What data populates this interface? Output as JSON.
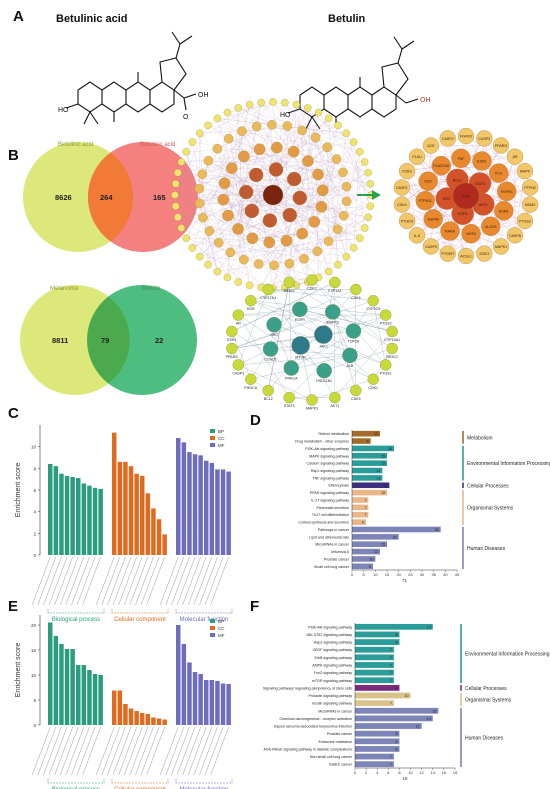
{
  "panels": {
    "A": "A",
    "B": "B",
    "C": "C",
    "D": "D",
    "E": "E",
    "F": "F"
  },
  "molecules": {
    "left": {
      "name": "Betulinic acid",
      "label_oh": "OH",
      "label_ho": "HO",
      "label_o": "O"
    },
    "right": {
      "name": "Betulin",
      "label_oh": "OH",
      "label_ho": "HO"
    }
  },
  "venn1": {
    "left_label": "Betulinic acid",
    "right_label": "Betulinic acid",
    "left_only": "8626",
    "both": "264",
    "right_only": "165",
    "left_color": "#d8e56a",
    "right_color": "#f07070"
  },
  "venn2": {
    "left_label": "Melanoma",
    "right_label": "Betulin",
    "left_only": "8811",
    "both": "79",
    "right_only": "22",
    "left_color": "#d8e56a",
    "right_color": "#2fb36a"
  },
  "net_right_labels": [
    "FGFR3",
    "CASP3",
    "PPARG",
    "AR",
    "MAPK",
    "PTPN2",
    "MDM2",
    "PTGS2",
    "CASP8",
    "MAPK1",
    "SOD1",
    "ACSL1",
    "PTGER",
    "CASP9",
    "IL-6",
    "PTGDS",
    "CDK4",
    "CASP1",
    "F2DS",
    "PLAU",
    "ACE",
    "CASP2",
    "ESR1",
    "PLG",
    "FGFR4",
    "KDM1",
    "ALOX5",
    "NOS2",
    "RARA",
    "HSP90",
    "PTPN11",
    "SCD",
    "PLA2G4A",
    "TNF",
    "STAT3",
    "AKT1",
    "EGFR",
    "SRC",
    "BCL2",
    "JUN"
  ],
  "net_bottom_labels": [
    "CDK2",
    "CYP1A1",
    "CDK6",
    "CYP2C9",
    "PTGS2",
    "CYP19A1",
    "NR3C1",
    "PTGS1",
    "CDK1",
    "CDK4",
    "AKT1",
    "MAPK1",
    "STAT3",
    "BCL2",
    "PIK3CA",
    "CASP3",
    "PPARG",
    "ESR1",
    "AR",
    "KDR",
    "CYP17A1",
    "MDM2",
    "MAPK3",
    "TOP2A",
    "ALB",
    "HSD11B1",
    "PRKCA",
    "CCND1",
    "SRC",
    "EGFR",
    "JAK2",
    "MTOR"
  ],
  "chart_data": [
    {
      "type": "bar",
      "panel": "C",
      "ylabel": "Enrichment score",
      "yticks": [
        "10",
        "8",
        "6",
        "4",
        "2",
        "0"
      ],
      "ylim": [
        0,
        12
      ],
      "groups": [
        "Biological process",
        "Cellular component",
        "Molecular function"
      ],
      "legend": [
        "BP",
        "CC",
        "MF"
      ],
      "colors": [
        "#2a9d7f",
        "#e06a1e",
        "#6d6cbf"
      ],
      "series": [
        {
          "name": "BP",
          "values": [
            8.4,
            8.2,
            7.5,
            7.3,
            7.2,
            7.1,
            6.6,
            6.4,
            6.2,
            6.1
          ]
        },
        {
          "name": "CC",
          "values": [
            11.3,
            8.6,
            8.6,
            8.2,
            7.5,
            7.3,
            5.7,
            4.3,
            3.3,
            1.9
          ]
        },
        {
          "name": "MF",
          "values": [
            10.8,
            10.4,
            9.5,
            9.3,
            9.2,
            8.7,
            8.5,
            7.9,
            7.9,
            7.7
          ]
        }
      ]
    },
    {
      "type": "bar",
      "panel": "D",
      "xlabel": "71",
      "xticks": [
        "0",
        "5",
        "10",
        "15",
        "20",
        "25",
        "30",
        "35",
        "40",
        "45"
      ],
      "xlim": [
        0,
        45
      ],
      "categories": [
        "Retinol metabolism",
        "Drug metabolism - other enzymes",
        "PI3K-Akt signaling pathway",
        "MAPK signaling pathway",
        "Calcium signaling pathway",
        "Rap1 signaling pathway",
        "TNF signaling pathway",
        "Efferocytosis",
        "PPAR signaling pathway",
        "IL-17 signaling pathway",
        "Pancreatic secretion",
        "Th17 cell differentiation",
        "Cortisol synthesis and secretion",
        "Pathways in cancer",
        "Lipid and atherosclerosis",
        "MicroRNAs in cancer",
        "Influenza A",
        "Prostate cancer",
        "Small cell lung cancer"
      ],
      "values": [
        12,
        8,
        18,
        15,
        15,
        13,
        13,
        16,
        15,
        7,
        7,
        7,
        6,
        38,
        20,
        15,
        12,
        10,
        9
      ],
      "classes": [
        "Metabolism",
        "Metabolism",
        "Environmental Information Processing",
        "Environmental Information Processing",
        "Environmental Information Processing",
        "Environmental Information Processing",
        "Environmental Information Processing",
        "Cellular Processes",
        "Organismal Systems",
        "Organismal Systems",
        "Organismal Systems",
        "Organismal Systems",
        "Organismal Systems",
        "Human Diseases",
        "Human Diseases",
        "Human Diseases",
        "Human Diseases",
        "Human Diseases",
        "Human Diseases"
      ],
      "class_labels": [
        "Metabolism",
        "Environmental Information Processing",
        "Cellular Processes",
        "Organismal Systems",
        "Human Diseases"
      ],
      "class_colors": {
        "Metabolism": "#a36a2a",
        "Environmental Information Processing": "#2a9d9a",
        "Cellular Processes": "#3d2f7f",
        "Organismal Systems": "#e9b787",
        "Human Diseases": "#7d84b8"
      }
    },
    {
      "type": "bar",
      "panel": "E",
      "ylabel": "Enrichment score",
      "yticks": [
        "20",
        "15",
        "10",
        "5",
        "0"
      ],
      "ylim": [
        0,
        22
      ],
      "groups": [
        "Biological process",
        "Cellular component",
        "Molecular function"
      ],
      "legend": [
        "BP",
        "CC",
        "MF"
      ],
      "colors": [
        "#2a9d7f",
        "#e06a1e",
        "#6d6cbf"
      ],
      "series": [
        {
          "name": "BP",
          "values": [
            20.5,
            17.8,
            16.2,
            15.2,
            15.2,
            12.0,
            12.0,
            11.0,
            10.2,
            10.0
          ]
        },
        {
          "name": "CC",
          "values": [
            6.9,
            6.9,
            4.2,
            3.3,
            2.8,
            2.4,
            2.2,
            1.5,
            1.3,
            1.1
          ]
        },
        {
          "name": "MF",
          "values": [
            20.0,
            16.2,
            12.5,
            10.6,
            10.2,
            9.0,
            9.0,
            8.8,
            8.3,
            8.2
          ]
        }
      ]
    },
    {
      "type": "bar",
      "panel": "F",
      "xlabel": "18",
      "xticks": [
        "0",
        "2",
        "4",
        "6",
        "8",
        "10",
        "12",
        "14",
        "16",
        "18"
      ],
      "xlim": [
        0,
        18
      ],
      "categories": [
        "PI3K-Akt signaling pathway",
        "JAK-STAT signaling pathway",
        "Rap1 signaling pathway",
        "VEGF signaling pathway",
        "ErbB signaling pathway",
        "AMPK signaling pathway",
        "FoxO signaling pathway",
        "mTOR signaling pathway",
        "Signaling pathways regulating pluripotency of stem cells",
        "Prolactin signaling pathway",
        "Insulin signaling pathway",
        "MicroRNAs in cancer",
        "Chemical carcinogenesis - receptor activation",
        "Kaposi sarcoma-associated herpesvirus infection",
        "Prostate cancer",
        "Endocrine resistance",
        "AGE-RAGE signaling pathway in diabetic complications",
        "Non-small cell lung cancer",
        "Gastric cancer"
      ],
      "values": [
        14,
        8,
        8,
        7,
        7,
        7,
        7,
        7,
        8,
        10,
        7,
        15,
        14,
        12,
        8,
        8,
        8,
        7,
        7
      ],
      "classes": [
        "Environmental Information Processing",
        "Environmental Information Processing",
        "Environmental Information Processing",
        "Environmental Information Processing",
        "Environmental Information Processing",
        "Environmental Information Processing",
        "Environmental Information Processing",
        "Environmental Information Processing",
        "Cellular Processes",
        "Organismal Systems",
        "Organismal Systems",
        "Human Diseases",
        "Human Diseases",
        "Human Diseases",
        "Human Diseases",
        "Human Diseases",
        "Human Diseases",
        "Human Diseases",
        "Human Diseases"
      ],
      "class_labels": [
        "Environmental Information Processing",
        "Cellular Processes",
        "Organismal Systems",
        "Human Diseases"
      ],
      "class_colors": {
        "Environmental Information Processing": "#2a9d9a",
        "Cellular Processes": "#7a2b7e",
        "Organismal Systems": "#d9c38a",
        "Human Diseases": "#7d84b8"
      }
    }
  ]
}
